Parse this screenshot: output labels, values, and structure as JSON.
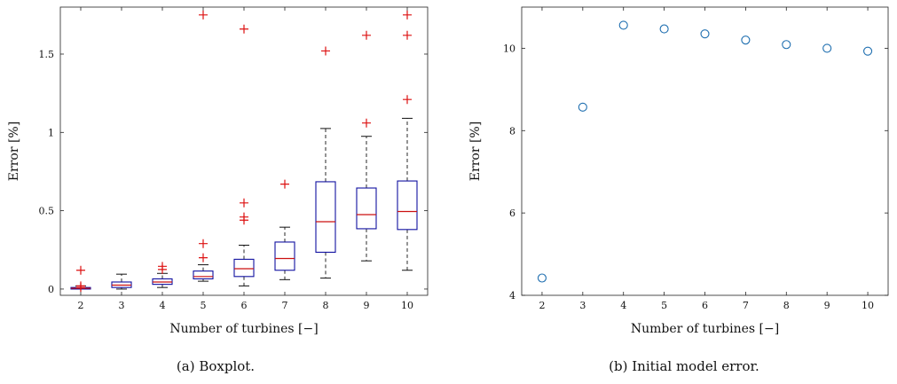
{
  "colors": {
    "box": "#1010a0",
    "median": "#cc1111",
    "outlier": "#dd1111",
    "whisker": "#111111",
    "scatter": "#1f6fb0"
  },
  "chart_data": [
    {
      "type": "boxplot",
      "caption": "(a) Boxplot.",
      "xlabel": "Number of turbines [−]",
      "ylabel": "Error [%]",
      "xlim": [
        1.5,
        10.5
      ],
      "ylim": [
        -0.04,
        1.8
      ],
      "xticks": [
        "2",
        "3",
        "4",
        "5",
        "6",
        "7",
        "8",
        "9",
        "10"
      ],
      "yticks": [
        {
          "v": 0,
          "t": "0"
        },
        {
          "v": 0.5,
          "t": "0.5"
        },
        {
          "v": 1,
          "t": "1"
        },
        {
          "v": 1.5,
          "t": "1.5"
        }
      ],
      "boxes": [
        {
          "x": 2,
          "min": 0.0,
          "q1": 0.0,
          "med": 0.005,
          "q3": 0.01,
          "max": 0.02,
          "outliers": [
            0.12,
            0.02,
            0.01
          ]
        },
        {
          "x": 3,
          "min": 0.0,
          "q1": 0.01,
          "med": 0.025,
          "q3": 0.045,
          "max": 0.095,
          "outliers": []
        },
        {
          "x": 4,
          "min": 0.01,
          "q1": 0.03,
          "med": 0.045,
          "q3": 0.065,
          "max": 0.1,
          "outliers": [
            0.145,
            0.125
          ]
        },
        {
          "x": 5,
          "min": 0.05,
          "q1": 0.065,
          "med": 0.08,
          "q3": 0.115,
          "max": 0.155,
          "outliers": [
            1.75,
            0.29,
            0.2
          ]
        },
        {
          "x": 6,
          "min": 0.02,
          "q1": 0.08,
          "med": 0.13,
          "q3": 0.19,
          "max": 0.28,
          "outliers": [
            1.66,
            0.55,
            0.46,
            0.44
          ]
        },
        {
          "x": 7,
          "min": 0.06,
          "q1": 0.12,
          "med": 0.195,
          "q3": 0.3,
          "max": 0.395,
          "outliers": [
            0.67
          ]
        },
        {
          "x": 8,
          "min": 0.07,
          "q1": 0.235,
          "med": 0.43,
          "q3": 0.685,
          "max": 1.025,
          "outliers": [
            1.52
          ]
        },
        {
          "x": 9,
          "min": 0.18,
          "q1": 0.385,
          "med": 0.475,
          "q3": 0.645,
          "max": 0.975,
          "outliers": [
            1.62,
            1.06
          ]
        },
        {
          "x": 10,
          "min": 0.12,
          "q1": 0.38,
          "med": 0.495,
          "q3": 0.69,
          "max": 1.09,
          "outliers": [
            1.75,
            1.62,
            1.21
          ]
        }
      ]
    },
    {
      "type": "scatter",
      "caption": "(b) Initial model error.",
      "xlabel": "Number of turbines [−]",
      "ylabel": "Error [%]",
      "xlim": [
        1.5,
        10.5
      ],
      "ylim": [
        4,
        11.0
      ],
      "xticks": [
        "2",
        "3",
        "4",
        "5",
        "6",
        "7",
        "8",
        "9",
        "10"
      ],
      "yticks": [
        {
          "v": 4,
          "t": "4"
        },
        {
          "v": 6,
          "t": "6"
        },
        {
          "v": 8,
          "t": "8"
        },
        {
          "v": 10,
          "t": "10"
        }
      ],
      "x": [
        2,
        3,
        4,
        5,
        6,
        7,
        8,
        9,
        10
      ],
      "y": [
        4.42,
        8.57,
        10.56,
        10.47,
        10.35,
        10.2,
        10.09,
        10.0,
        9.93
      ]
    }
  ]
}
